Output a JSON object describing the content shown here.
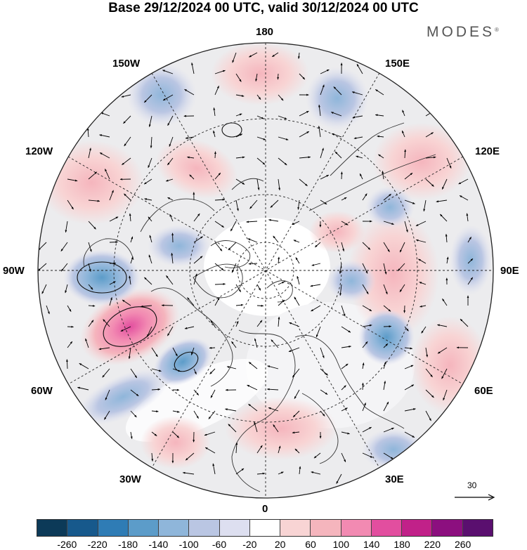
{
  "title": "Base 29/12/2024 00 UTC, valid 30/12/2024 00 UTC",
  "brand": "MODES",
  "brand_mark": "®",
  "map": {
    "projection": "north-polar-stereographic",
    "longitude_labels": {
      "top": "180",
      "bottom": "0",
      "left": "90W",
      "right": "90E",
      "upper_left_1": "150W",
      "upper_left_2": "120W",
      "upper_right_1": "150E",
      "upper_right_2": "120E",
      "lower_left_1": "60W",
      "lower_left_2": "30W",
      "lower_right_1": "60E",
      "lower_right_2": "30E"
    },
    "wind_reference": "30",
    "anomaly_centers": [
      {
        "name": "north-atlantic-positive",
        "value": 240
      },
      {
        "name": "labrador-negative",
        "value": -160
      },
      {
        "name": "north-pacific-positive",
        "value": 100
      },
      {
        "name": "western-siberia-positive",
        "value": 80
      },
      {
        "name": "kamchatka-negative",
        "value": -80
      }
    ]
  },
  "legend": {
    "colors": [
      "#0c3a58",
      "#17598c",
      "#2f7cb5",
      "#5c9cc9",
      "#8fb6da",
      "#bac6e3",
      "#dddff0",
      "#ffffff",
      "#f8d4d4",
      "#f5b5bd",
      "#f28ab2",
      "#e24e9f",
      "#c12189",
      "#8c0f7f",
      "#5a0f6f"
    ],
    "tick_labels": [
      "-260",
      "-220",
      "-180",
      "-140",
      "-100",
      "-60",
      "-20",
      "20",
      "60",
      "100",
      "140",
      "180",
      "220",
      "260"
    ]
  },
  "colors": {
    "graticule": "#222222",
    "coastline": "#333333",
    "wind_arrow": "#000000"
  }
}
